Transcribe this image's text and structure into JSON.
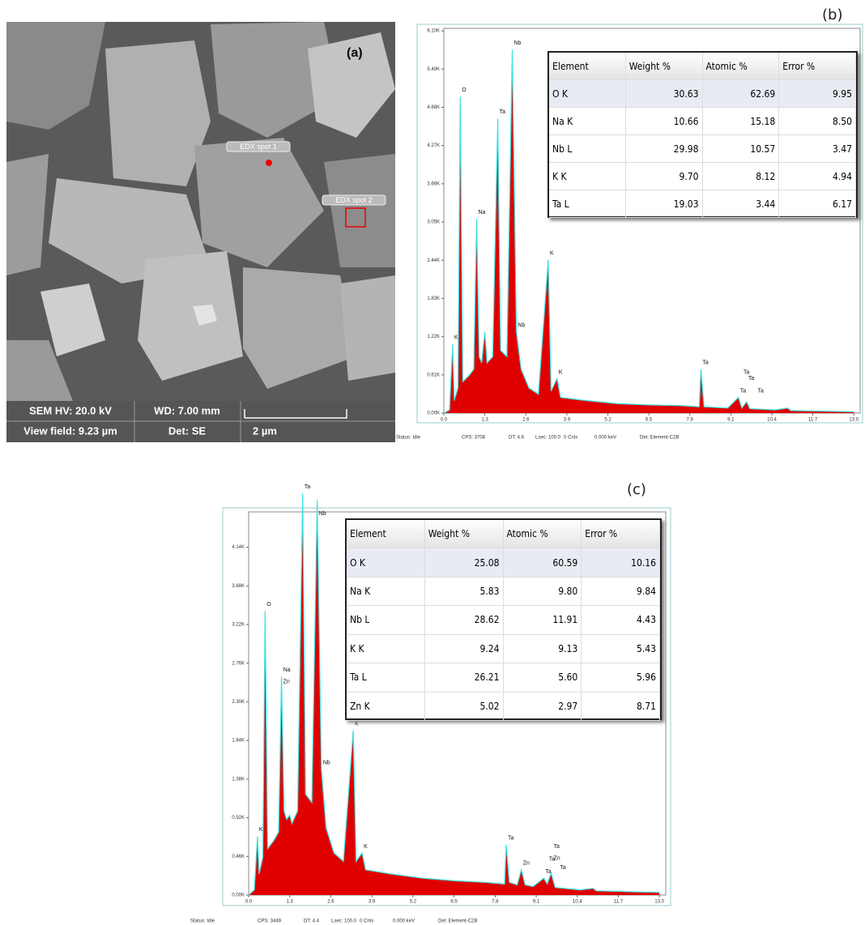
{
  "panel_a": {
    "label": "(a)",
    "spots": [
      "EDX spot 1",
      "EDX spot 2"
    ],
    "info": {
      "hv": "SEM HV: 20.0 kV",
      "wd": "WD: 7.00 mm",
      "view_field": "View field: 9.23 µm",
      "det": "Det: SE",
      "scale": "2 µm"
    }
  },
  "chart_data": [
    {
      "type": "area",
      "label": "(b)",
      "color": "#e00000",
      "outline": "#3fe0e0",
      "x": [
        0,
        0.18,
        0.28,
        0.33,
        0.45,
        0.52,
        0.6,
        0.8,
        0.95,
        1.04,
        1.12,
        1.2,
        1.3,
        1.37,
        1.55,
        1.71,
        1.8,
        2.0,
        2.17,
        2.3,
        2.45,
        2.7,
        3.0,
        3.31,
        3.4,
        3.59,
        3.7,
        4.5,
        5.5,
        6.5,
        7.5,
        8.1,
        8.15,
        8.25,
        9.0,
        9.34,
        9.45,
        9.6,
        9.7,
        10.5,
        10.9,
        11.0,
        12.0,
        13.0
      ],
      "values": [
        0,
        50,
        1100,
        200,
        400,
        5050,
        500,
        600,
        700,
        3100,
        900,
        800,
        1300,
        800,
        900,
        4700,
        1000,
        900,
        5800,
        1300,
        700,
        400,
        300,
        2450,
        350,
        550,
        250,
        200,
        150,
        130,
        120,
        100,
        700,
        100,
        80,
        250,
        80,
        180,
        70,
        50,
        80,
        40,
        30,
        20
      ],
      "xlim": [
        0,
        13.2
      ],
      "ylim": [
        0,
        6140
      ],
      "xticks": [
        {
          "value": 0,
          "label": "0.0"
        },
        1.3,
        2.6,
        3.9,
        5.2,
        6.5,
        7.8,
        9.1,
        10.4,
        11.7,
        {
          "value": 13,
          "label": "13.0"
        }
      ],
      "yticks": [
        {
          "value": 0,
          "label": "0.00K"
        },
        {
          "value": 610,
          "label": "0.61K"
        },
        {
          "value": 1220,
          "label": "1.22K"
        },
        {
          "value": 1830,
          "label": "1.83K"
        },
        {
          "value": 2440,
          "label": "2.44K"
        },
        {
          "value": 3050,
          "label": "3.05K"
        },
        {
          "value": 3660,
          "label": "3.66K"
        },
        {
          "value": 4270,
          "label": "4.27K"
        },
        {
          "value": 4880,
          "label": "4.88K"
        },
        {
          "value": 5490,
          "label": "5.49K"
        },
        {
          "value": 6100,
          "label": "6.10K"
        }
      ],
      "annotations": [
        {
          "text": "K",
          "x": 0.28,
          "y": 1100
        },
        {
          "text": "O",
          "x": 0.52,
          "y": 5050
        },
        {
          "text": "Na",
          "x": 1.04,
          "y": 3100
        },
        {
          "text": "Ta",
          "x": 1.71,
          "y": 4700
        },
        {
          "text": "Nb",
          "x": 2.17,
          "y": 5800
        },
        {
          "text": "Nb",
          "x": 2.3,
          "y": 1300
        },
        {
          "text": "K",
          "x": 3.31,
          "y": 2450
        },
        {
          "text": "K",
          "x": 3.59,
          "y": 550
        },
        {
          "text": "Ta",
          "x": 8.15,
          "y": 700
        },
        {
          "text": "Ta",
          "x": 9.34,
          "y": 250
        },
        {
          "text": "Ta",
          "x": 9.45,
          "y": 550
        },
        {
          "text": "Ta",
          "x": 9.6,
          "y": 450
        },
        {
          "text": "Ta",
          "x": 9.9,
          "y": 250
        }
      ],
      "status": [
        "Status: Idle",
        "CPS: 3708",
        "DT: 4.6",
        "Lsec: 100.0",
        "0 Cnts",
        "0.000 keV",
        "Det: Element-C2B"
      ],
      "table": {
        "header": [
          "Element",
          "Weight %",
          "Atomic %",
          "Error %"
        ],
        "rows": [
          [
            "O K",
            "30.63",
            "62.69",
            "9.95"
          ],
          [
            "Na K",
            "10.66",
            "15.18",
            "8.50"
          ],
          [
            "Nb L",
            "29.98",
            "10.57",
            "3.47"
          ],
          [
            "K K",
            "9.70",
            "8.12",
            "4.94"
          ],
          [
            "Ta L",
            "19.03",
            "3.44",
            "6.17"
          ]
        ]
      }
    },
    {
      "type": "area",
      "label": "(c)",
      "color": "#e00000",
      "outline": "#3fe0e0",
      "x": [
        0,
        0.18,
        0.28,
        0.33,
        0.45,
        0.52,
        0.6,
        0.8,
        0.95,
        1.04,
        1.12,
        1.2,
        1.3,
        1.37,
        1.55,
        1.71,
        1.8,
        2.0,
        2.17,
        2.3,
        2.45,
        2.7,
        3.0,
        3.31,
        3.4,
        3.59,
        3.7,
        4.5,
        5.5,
        6.5,
        7.5,
        8.1,
        8.15,
        8.25,
        8.5,
        8.63,
        8.75,
        9.0,
        9.34,
        9.45,
        9.57,
        9.7,
        10.5,
        10.9,
        11.0,
        12.0,
        13.0
      ],
      "values": [
        0,
        60,
        700,
        250,
        450,
        3380,
        550,
        650,
        750,
        2600,
        1000,
        900,
        950,
        850,
        1000,
        4780,
        1200,
        1100,
        4700,
        1500,
        800,
        500,
        400,
        1960,
        400,
        500,
        300,
        250,
        200,
        170,
        150,
        130,
        600,
        150,
        120,
        300,
        120,
        100,
        200,
        130,
        260,
        90,
        60,
        80,
        50,
        40,
        30
      ],
      "xlim": [
        0,
        13.2
      ],
      "ylim": [
        0,
        4560
      ],
      "xticks": [
        {
          "value": 0,
          "label": "0.0"
        },
        1.3,
        2.6,
        3.9,
        5.2,
        6.5,
        7.8,
        9.1,
        10.4,
        11.7,
        {
          "value": 13,
          "label": "13.0"
        }
      ],
      "yticks": [
        {
          "value": 0,
          "label": "0.00K"
        },
        {
          "value": 460,
          "label": "0.46K"
        },
        {
          "value": 920,
          "label": "0.92K"
        },
        {
          "value": 1380,
          "label": "1.38K"
        },
        {
          "value": 1840,
          "label": "1.84K"
        },
        {
          "value": 2300,
          "label": "2.30K"
        },
        {
          "value": 2760,
          "label": "2.76K"
        },
        {
          "value": 3220,
          "label": "3.22K"
        },
        {
          "value": 3680,
          "label": "3.68K"
        },
        {
          "value": 4140,
          "label": "4.14K"
        }
      ],
      "annotations": [
        {
          "text": "K",
          "x": 0.28,
          "y": 700
        },
        {
          "text": "O",
          "x": 0.52,
          "y": 3380
        },
        {
          "text": "Na",
          "x": 1.04,
          "y": 2600
        },
        {
          "text": "Zn",
          "x": 1.04,
          "y": 2460
        },
        {
          "text": "Ta",
          "x": 1.71,
          "y": 4780
        },
        {
          "text": "Nb",
          "x": 2.17,
          "y": 4460
        },
        {
          "text": "Nb",
          "x": 2.3,
          "y": 1500
        },
        {
          "text": "K",
          "x": 3.31,
          "y": 1960
        },
        {
          "text": "K",
          "x": 3.59,
          "y": 500
        },
        {
          "text": "Ta",
          "x": 8.15,
          "y": 600
        },
        {
          "text": "Zn",
          "x": 8.63,
          "y": 300
        },
        {
          "text": "Ta",
          "x": 9.34,
          "y": 200
        },
        {
          "text": "Ta",
          "x": 9.45,
          "y": 350
        },
        {
          "text": "Zn",
          "x": 9.6,
          "y": 360
        },
        {
          "text": "Ta",
          "x": 9.6,
          "y": 500
        },
        {
          "text": "Ta",
          "x": 9.8,
          "y": 250
        }
      ],
      "status": [
        "Status: Idle",
        "CPS: 3449",
        "DT: 4.4",
        "Lsec: 100.0",
        "0 Cnts",
        "0.000 keV",
        "Det: Element-C2B"
      ],
      "table": {
        "header": [
          "Element",
          "Weight %",
          "Atomic %",
          "Error %"
        ],
        "rows": [
          [
            "O K",
            "25.08",
            "60.59",
            "10.16"
          ],
          [
            "Na K",
            "5.83",
            "9.80",
            "9.84"
          ],
          [
            "Nb L",
            "28.62",
            "11.91",
            "4.43"
          ],
          [
            "K K",
            "9.24",
            "9.13",
            "5.43"
          ],
          [
            "Ta L",
            "26.21",
            "5.60",
            "5.96"
          ],
          [
            "Zn K",
            "5.02",
            "2.97",
            "8.71"
          ]
        ]
      }
    }
  ]
}
